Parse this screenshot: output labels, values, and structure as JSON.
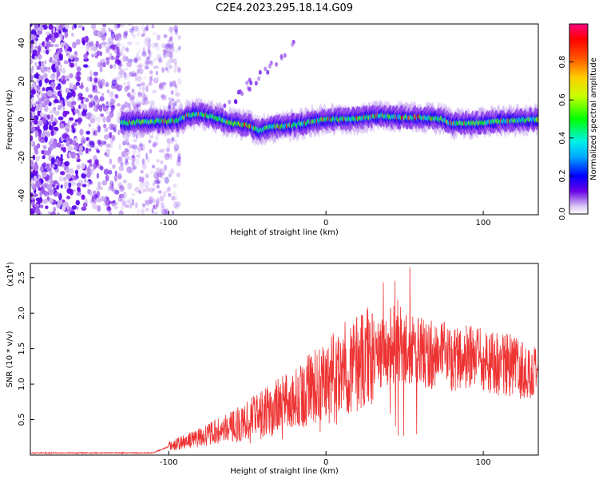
{
  "title": "C2E4.2023.295.18.14.G09",
  "chart_data": [
    {
      "type": "heatmap",
      "title": "C2E4.2023.295.18.14.G09",
      "xlabel": "Height of straight line (km)",
      "ylabel": "Frequency (Hz)",
      "xlim": [
        -188,
        135
      ],
      "ylim": [
        -50,
        50
      ],
      "xticks": [
        -100,
        0,
        100
      ],
      "yticks": [
        -40,
        -20,
        0,
        20,
        40
      ],
      "colorbar": {
        "label": "Normalized spectral amplitude",
        "range": [
          0,
          1
        ],
        "ticks": [
          0.0,
          0.2,
          0.4,
          0.6,
          0.8
        ]
      },
      "ridge": {
        "x": [
          -130,
          -110,
          -95,
          -88,
          -82,
          -70,
          -60,
          -50,
          -42,
          -35,
          -20,
          0,
          15,
          25,
          35,
          45,
          60,
          75,
          80,
          95,
          110,
          135
        ],
        "y": [
          -2,
          -1,
          -1,
          2,
          3,
          1,
          -2,
          -3,
          -6,
          -4,
          -3,
          0,
          0,
          1,
          2,
          1,
          1,
          0,
          -2,
          -2,
          -1,
          0
        ]
      }
    },
    {
      "type": "line",
      "xlabel": "Height of straight line (km)",
      "ylabel": "SNR (10 * v/v)",
      "multiplier": "(x10",
      "exponent": "4",
      "multiplier_close": ")",
      "xlim": [
        -188,
        135
      ],
      "ylim": [
        0,
        2.7
      ],
      "xticks": [
        -100,
        0,
        100
      ],
      "yticks": [
        0.5,
        1.0,
        1.5,
        2.0,
        2.5
      ],
      "color": "#ee3333",
      "envelope": {
        "x": [
          -188,
          -110,
          -100,
          -80,
          -60,
          -40,
          -20,
          0,
          10,
          25,
          32,
          45,
          60,
          80,
          100,
          120,
          135
        ],
        "y": [
          0.03,
          0.03,
          0.12,
          0.25,
          0.4,
          0.6,
          0.8,
          1.05,
          1.2,
          1.38,
          1.45,
          1.5,
          1.45,
          1.38,
          1.33,
          1.25,
          1.1
        ]
      }
    }
  ]
}
